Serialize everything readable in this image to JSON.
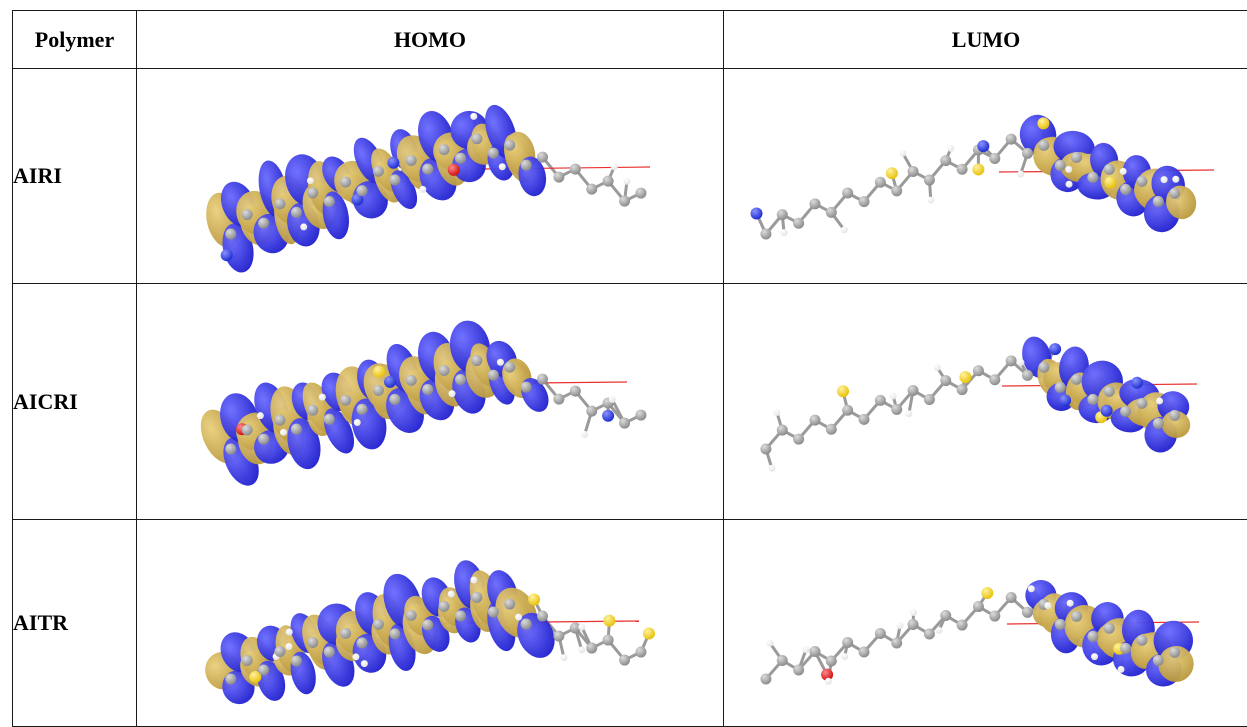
{
  "headers": {
    "col1": "Polymer",
    "col2": "HOMO",
    "col3": "LUMO"
  },
  "rows": [
    {
      "polymer": "AIRI"
    },
    {
      "polymer": "AICRI"
    },
    {
      "polymer": "AITR"
    }
  ],
  "colors": {
    "orbital_positive": "#1c1ccc",
    "orbital_negative": "#b8963a",
    "carbon": "#8c8c8c",
    "hydrogen": "#e4e4e4",
    "sulfur": "#e8c20a",
    "nitrogen": "#1f2fd0",
    "oxygen": "#d01010",
    "axis_line": "#e83030"
  }
}
